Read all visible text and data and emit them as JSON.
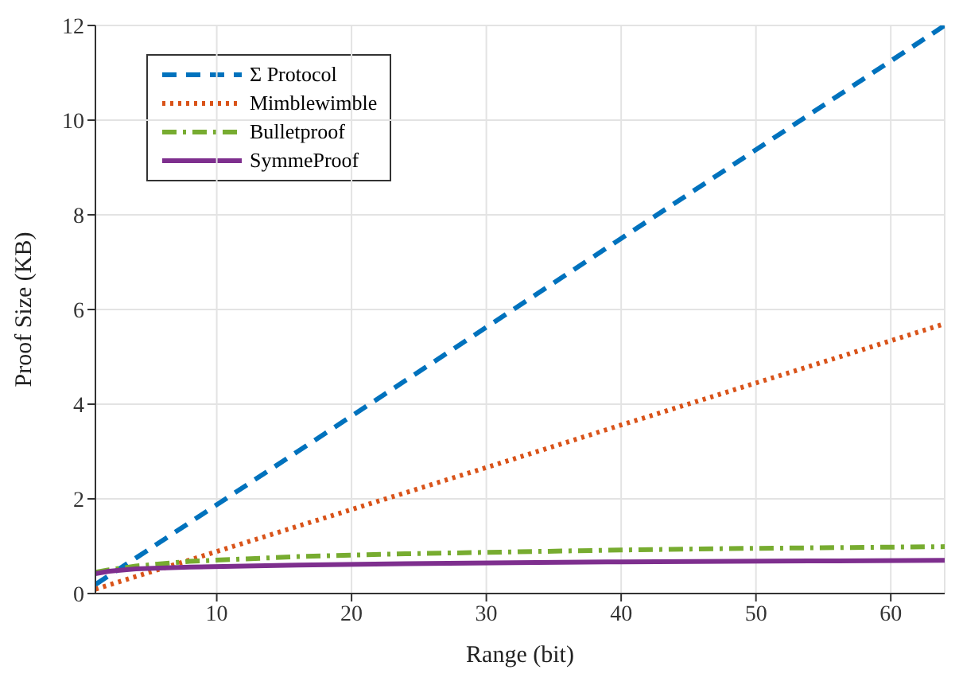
{
  "chart_data": {
    "type": "line",
    "xlabel": "Range (bit)",
    "ylabel": "Proof Size (KB)",
    "xlim": [
      1,
      64
    ],
    "xticks": [
      10,
      20,
      30,
      40,
      50,
      60
    ],
    "ylim": [
      0,
      12
    ],
    "yticks": [
      0,
      2,
      4,
      6,
      8,
      10,
      12
    ],
    "grid": true,
    "legend": "top left",
    "marker": "none",
    "x": [
      1,
      2,
      4,
      8,
      16,
      24,
      32,
      40,
      48,
      56,
      64
    ],
    "series": [
      {
        "name": "Σ Protocol",
        "color": "#0072bd",
        "line_style": "dashed",
        "values": [
          0.19,
          0.38,
          0.75,
          1.5,
          3.0,
          4.5,
          6.0,
          7.5,
          9.0,
          10.5,
          12.0
        ]
      },
      {
        "name": "Mimblewimble",
        "color": "#d95319",
        "line_style": "dotted",
        "values": [
          0.09,
          0.18,
          0.36,
          0.71,
          1.42,
          2.13,
          2.84,
          3.56,
          4.27,
          4.98,
          5.7
        ]
      },
      {
        "name": "Bulletproof",
        "color": "#77ac30",
        "line_style": "dashdot",
        "values": [
          0.45,
          0.5,
          0.58,
          0.68,
          0.78,
          0.84,
          0.88,
          0.92,
          0.95,
          0.97,
          0.99
        ]
      },
      {
        "name": "SymmeProof",
        "color": "#7e2f8e",
        "line_style": "solid",
        "values": [
          0.42,
          0.47,
          0.52,
          0.56,
          0.6,
          0.63,
          0.65,
          0.67,
          0.68,
          0.69,
          0.7
        ]
      }
    ]
  }
}
